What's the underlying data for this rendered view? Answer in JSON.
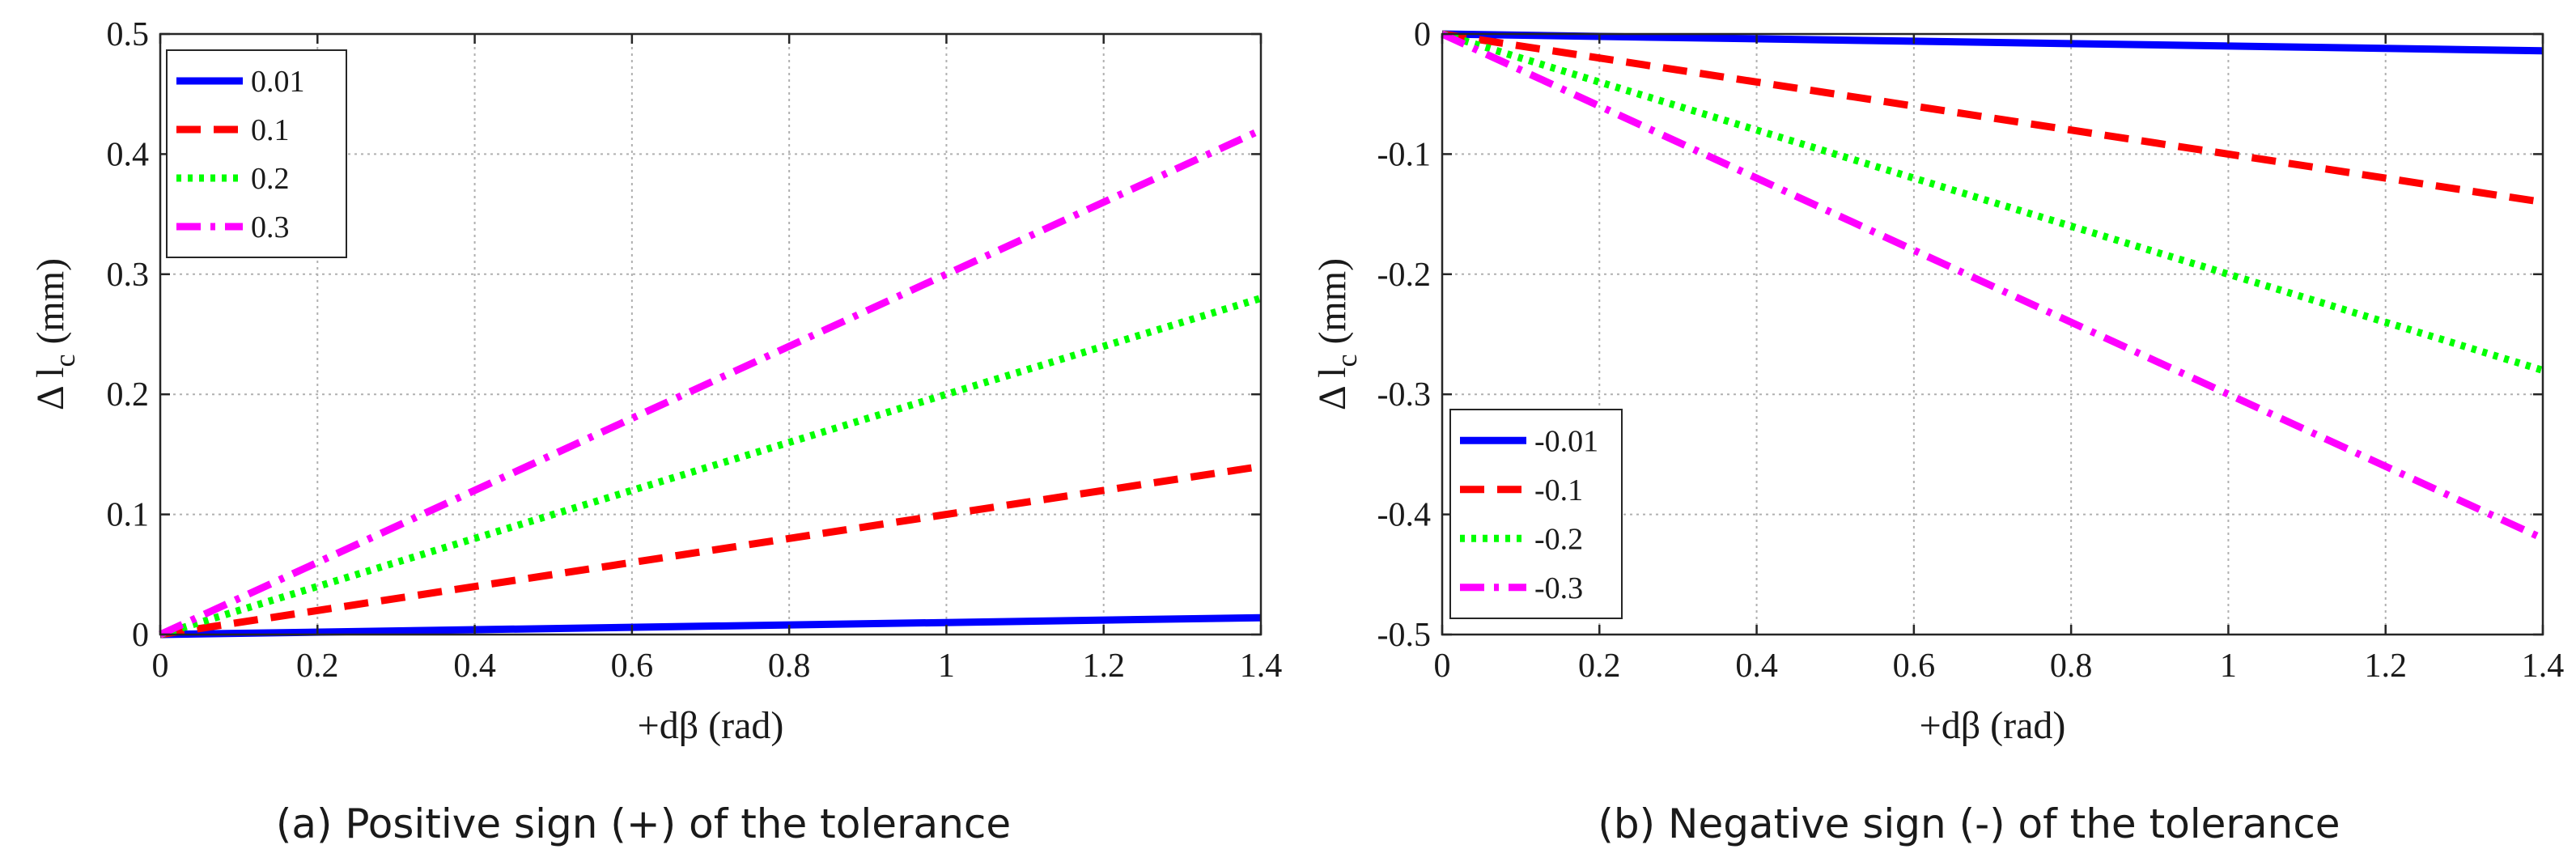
{
  "chart_data": [
    {
      "type": "line",
      "caption": "(a) Positive sign (+) of the tolerance",
      "xlabel": "+dβ (rad)",
      "ylabel_prefix": "Δ l",
      "ylabel_sub": "c",
      "ylabel_suffix": " (mm)",
      "xlim": [
        0,
        1.4
      ],
      "ylim": [
        0,
        0.5
      ],
      "xticks": [
        0,
        0.2,
        0.4,
        0.6,
        0.8,
        1,
        1.2,
        1.4
      ],
      "xtick_labels": [
        "0",
        "0.2",
        "0.4",
        "0.6",
        "0.8",
        "1",
        "1.2",
        "1.4"
      ],
      "yticks": [
        0,
        0.1,
        0.2,
        0.3,
        0.4,
        0.5
      ],
      "ytick_labels": [
        "0",
        "0.1",
        "0.2",
        "0.3",
        "0.4",
        "0.5"
      ],
      "grid": true,
      "legend_position": "top-left",
      "series": [
        {
          "name": "0.01",
          "x": [
            0,
            1.4
          ],
          "y": [
            0,
            0.014
          ],
          "color": "#0000ff",
          "style": "solid"
        },
        {
          "name": "0.1",
          "x": [
            0,
            1.4
          ],
          "y": [
            0,
            0.14
          ],
          "color": "#ff0000",
          "style": "dashed"
        },
        {
          "name": "0.2",
          "x": [
            0,
            1.4
          ],
          "y": [
            0,
            0.28
          ],
          "color": "#00ff00",
          "style": "dotted"
        },
        {
          "name": "0.3",
          "x": [
            0,
            1.4
          ],
          "y": [
            0,
            0.42
          ],
          "color": "#ff00ff",
          "style": "dashdot"
        }
      ]
    },
    {
      "type": "line",
      "caption": "(b) Negative sign (-) of the tolerance",
      "xlabel": "+dβ (rad)",
      "ylabel_prefix": "Δ l",
      "ylabel_sub": "c",
      "ylabel_suffix": " (mm)",
      "xlim": [
        0,
        1.4
      ],
      "ylim": [
        -0.5,
        0
      ],
      "xticks": [
        0,
        0.2,
        0.4,
        0.6,
        0.8,
        1,
        1.2,
        1.4
      ],
      "xtick_labels": [
        "0",
        "0.2",
        "0.4",
        "0.6",
        "0.8",
        "1",
        "1.2",
        "1.4"
      ],
      "yticks": [
        0,
        -0.1,
        -0.2,
        -0.3,
        -0.4,
        -0.5
      ],
      "ytick_labels": [
        "0",
        "-0.1",
        "-0.2",
        "-0.3",
        "-0.4",
        "-0.5"
      ],
      "grid": true,
      "legend_position": "bottom-left",
      "series": [
        {
          "name": "-0.01",
          "x": [
            0,
            1.4
          ],
          "y": [
            0,
            -0.014
          ],
          "color": "#0000ff",
          "style": "solid"
        },
        {
          "name": "-0.1",
          "x": [
            0,
            1.4
          ],
          "y": [
            0,
            -0.14
          ],
          "color": "#ff0000",
          "style": "dashed"
        },
        {
          "name": "-0.2",
          "x": [
            0,
            1.4
          ],
          "y": [
            0,
            -0.28
          ],
          "color": "#00ff00",
          "style": "dotted"
        },
        {
          "name": "-0.3",
          "x": [
            0,
            1.4
          ],
          "y": [
            0,
            -0.42
          ],
          "color": "#ff00ff",
          "style": "dashdot"
        }
      ]
    }
  ]
}
